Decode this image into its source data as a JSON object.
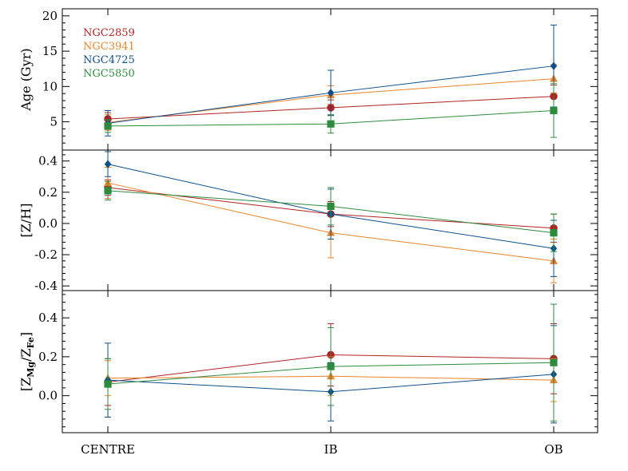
{
  "chart_data": {
    "type": "line",
    "categories": [
      "CENTRE",
      "IB",
      "OB"
    ],
    "legend_position": "top-left",
    "series": [
      {
        "name": "NGC2859",
        "color": "#b22222",
        "marker": "circle"
      },
      {
        "name": "NGC3941",
        "color": "#e8842c",
        "marker": "triangle"
      },
      {
        "name": "NGC4725",
        "color": "#0d4f8b",
        "marker": "diamond"
      },
      {
        "name": "NGC5850",
        "color": "#2e8b3e",
        "marker": "square"
      }
    ],
    "panels": [
      {
        "id": "age",
        "ylabel": "Age (Gyr)",
        "ylim": [
          1,
          21
        ],
        "yticks": [
          5,
          10,
          15,
          20
        ],
        "ytick_labels": [
          "5",
          "10",
          "15",
          "20"
        ],
        "show_legend": true,
        "data": [
          {
            "series": "NGC2859",
            "values": [
              5.4,
              7.0,
              8.6
            ],
            "errors": [
              0.9,
              1.1,
              1.6
            ]
          },
          {
            "series": "NGC3941",
            "values": [
              4.9,
              8.8,
              11.1
            ],
            "errors": [
              1.1,
              1.3,
              2.0
            ]
          },
          {
            "series": "NGC4725",
            "values": [
              4.8,
              9.1,
              12.9
            ],
            "errors": [
              1.8,
              3.2,
              5.8
            ]
          },
          {
            "series": "NGC5850",
            "values": [
              4.4,
              4.7,
              6.6
            ],
            "errors": [
              0.9,
              1.3,
              3.8
            ]
          }
        ]
      },
      {
        "id": "zh",
        "ylabel": "[Z/H]",
        "ylim": [
          -0.43,
          0.47
        ],
        "yticks": [
          -0.4,
          -0.2,
          0.0,
          0.2,
          0.4
        ],
        "ytick_labels": [
          "-0.4",
          "-0.2",
          "0.0",
          "0.2",
          "0.4"
        ],
        "show_legend": false,
        "data": [
          {
            "series": "NGC2859",
            "values": [
              0.23,
              0.06,
              -0.03
            ],
            "errors": [
              0.05,
              0.08,
              0.09
            ]
          },
          {
            "series": "NGC3941",
            "values": [
              0.26,
              -0.06,
              -0.24
            ],
            "errors": [
              0.1,
              0.16,
              0.14
            ]
          },
          {
            "series": "NGC4725",
            "values": [
              0.38,
              0.06,
              -0.16
            ],
            "errors": [
              0.08,
              0.16,
              0.18
            ]
          },
          {
            "series": "NGC5850",
            "values": [
              0.21,
              0.11,
              -0.06
            ],
            "errors": [
              0.06,
              0.12,
              0.12
            ]
          }
        ]
      },
      {
        "id": "zmgfe",
        "ylabel_main": "[Z",
        "ylabel_sub1": "Mg",
        "ylabel_mid": "/Z",
        "ylabel_sub2": "Fe",
        "ylabel_end": "]",
        "ylim": [
          -0.19,
          0.54
        ],
        "yticks": [
          0.0,
          0.2,
          0.4
        ],
        "ytick_labels": [
          "0.0",
          "0.2",
          "0.4"
        ],
        "show_legend": false,
        "data": [
          {
            "series": "NGC2859",
            "values": [
              0.07,
              0.21,
              0.19
            ],
            "errors": [
              0.12,
              0.16,
              0.18
            ]
          },
          {
            "series": "NGC3941",
            "values": [
              0.09,
              0.1,
              0.08
            ],
            "errors": [
              0.09,
              0.1,
              0.11
            ]
          },
          {
            "series": "NGC4725",
            "values": [
              0.08,
              0.02,
              0.11
            ],
            "errors": [
              0.19,
              0.15,
              0.25
            ]
          },
          {
            "series": "NGC5850",
            "values": [
              0.06,
              0.15,
              0.17
            ],
            "errors": [
              0.13,
              0.2,
              0.3
            ]
          }
        ]
      }
    ]
  }
}
